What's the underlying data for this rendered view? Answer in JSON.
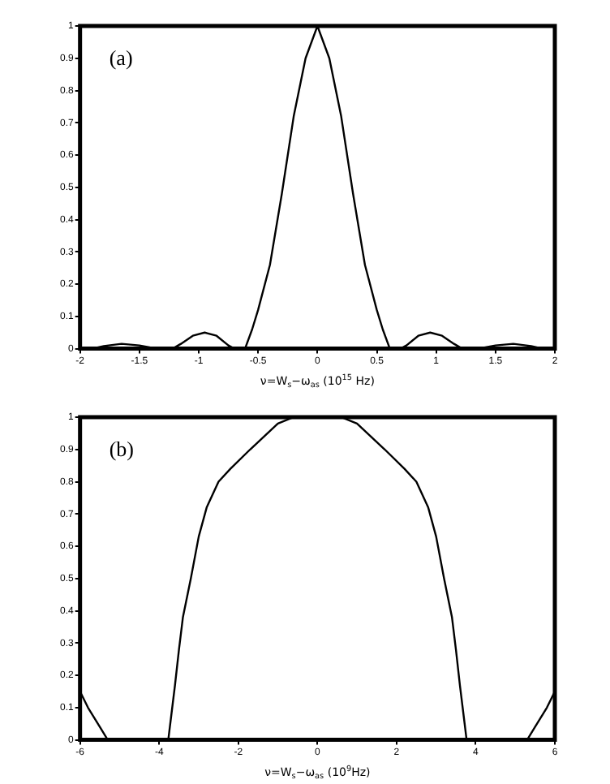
{
  "chart_data": [
    {
      "type": "line",
      "xlabel": "ν=W$_{s}$−ω$_{as}$ (10$^{15}$ Hz)",
      "annotations": [
        "(a)"
      ],
      "xlim": [
        -2,
        2
      ],
      "ylim": [
        0,
        1
      ],
      "xticks": [
        -2,
        -1.5,
        -1,
        -0.5,
        0,
        0.5,
        1,
        1.5,
        2
      ],
      "yticks": [
        0,
        0.1,
        0.2,
        0.3,
        0.4,
        0.5,
        0.6,
        0.7,
        0.8,
        0.9,
        1
      ],
      "grid": false,
      "legend": false,
      "marker": "none",
      "line_style": "solid",
      "series": [
        {
          "color": "#000000",
          "x": [
            -2,
            -1.9,
            -1.8,
            -1.65,
            -1.5,
            -1.35,
            -1.22,
            -1.15,
            -1.05,
            -0.95,
            -0.85,
            -0.75,
            -0.7,
            -0.61,
            -0.55,
            -0.5,
            -0.4,
            -0.3,
            -0.2,
            -0.1,
            0,
            0.1,
            0.2,
            0.3,
            0.4,
            0.5,
            0.55,
            0.61,
            0.7,
            0.75,
            0.85,
            0.95,
            1.05,
            1.15,
            1.22,
            1.35,
            1.5,
            1.65,
            1.8,
            1.9,
            2
          ],
          "values": [
            0,
            0,
            0.008,
            0.015,
            0.01,
            0,
            0,
            0.015,
            0.04,
            0.05,
            0.04,
            0.01,
            0,
            0,
            0.06,
            0.12,
            0.26,
            0.48,
            0.72,
            0.9,
            1,
            0.9,
            0.72,
            0.48,
            0.26,
            0.12,
            0.06,
            0,
            0,
            0.01,
            0.04,
            0.05,
            0.04,
            0.015,
            0,
            0,
            0.01,
            0.015,
            0.008,
            0,
            0
          ]
        }
      ]
    },
    {
      "type": "line",
      "xlabel": "ν=W$_{s}$−ω$_{as}$ (10$^{9}$Hz)",
      "annotations": [
        "(b)"
      ],
      "xlim": [
        -6,
        6
      ],
      "ylim": [
        0,
        1
      ],
      "xticks": [
        -6,
        -4,
        -2,
        0,
        2,
        4,
        6
      ],
      "yticks": [
        0,
        0.1,
        0.2,
        0.3,
        0.4,
        0.5,
        0.6,
        0.7,
        0.8,
        0.9,
        1
      ],
      "grid": false,
      "legend": false,
      "marker": "none",
      "line_style": "solid",
      "series": [
        {
          "color": "#000000",
          "x": [
            -6,
            -5.8,
            -5.5,
            -5.3,
            -4,
            -3.77,
            -3.7,
            -3.6,
            -3.5,
            -3.4,
            -3.2,
            -3,
            -2.8,
            -2.5,
            -2.2,
            -1.7,
            -1,
            -0.6,
            0,
            0.6,
            1,
            1.7,
            2.2,
            2.5,
            2.8,
            3,
            3.2,
            3.4,
            3.5,
            3.6,
            3.7,
            3.77,
            4,
            5.3,
            5.5,
            5.8,
            6
          ],
          "values": [
            0.15,
            0.1,
            0.04,
            0,
            0,
            0,
            0.07,
            0.17,
            0.28,
            0.38,
            0.5,
            0.63,
            0.72,
            0.8,
            0.84,
            0.9,
            0.98,
            1,
            1,
            1,
            0.98,
            0.9,
            0.84,
            0.8,
            0.72,
            0.63,
            0.5,
            0.38,
            0.28,
            0.17,
            0.07,
            0,
            0,
            0,
            0.04,
            0.1,
            0.15
          ]
        }
      ]
    }
  ]
}
